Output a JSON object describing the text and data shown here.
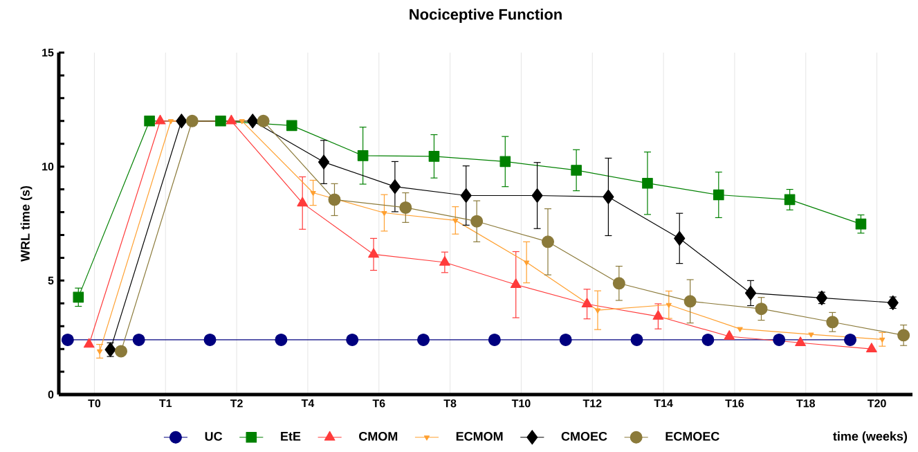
{
  "chart_data": {
    "type": "line",
    "title": "Nociceptive Function",
    "xlabel": "time (weeks)",
    "ylabel": "WRL time (s)",
    "categories": [
      "T0",
      "T1",
      "T2",
      "T4",
      "T6",
      "T8",
      "T10",
      "T12",
      "T14",
      "T16",
      "T18",
      "T20"
    ],
    "series": [
      {
        "name": "UC",
        "color": "#00007f",
        "marker": "circle",
        "values": [
          2.4,
          2.4,
          2.4,
          2.4,
          2.4,
          2.4,
          2.4,
          2.4,
          2.4,
          2.4,
          2.4,
          2.4
        ]
      },
      {
        "name": "EtE",
        "color": "#008000",
        "marker": "square",
        "values": [
          4.27,
          12,
          12,
          11.8,
          10.48,
          10.45,
          10.22,
          9.84,
          9.27,
          8.76,
          8.55,
          7.48
        ],
        "errors": [
          0.4,
          null,
          null,
          null,
          1.25,
          0.95,
          1.1,
          0.9,
          1.37,
          1.0,
          0.45,
          0.4
        ]
      },
      {
        "name": "CMOM",
        "color": "#ff3b3b",
        "marker": "triangle",
        "values": [
          2.2,
          12,
          12,
          8.4,
          6.15,
          5.8,
          4.82,
          3.97,
          3.43,
          2.55,
          2.27,
          2.0
        ],
        "errors": [
          null,
          null,
          null,
          1.15,
          0.7,
          0.45,
          1.45,
          0.65,
          0.55,
          null,
          null,
          null
        ]
      },
      {
        "name": "ECMOM",
        "color": "#ffa030",
        "marker": "triangle-down",
        "values": [
          1.9,
          12,
          12,
          8.85,
          7.97,
          7.64,
          5.8,
          3.7,
          3.94,
          2.88,
          2.64,
          2.42
        ],
        "errors": [
          0.3,
          null,
          null,
          0.55,
          0.8,
          0.6,
          0.9,
          0.85,
          0.6,
          null,
          null,
          0.3
        ]
      },
      {
        "name": "CMOEC",
        "color": "#000000",
        "marker": "diamond",
        "values": [
          1.97,
          12,
          12,
          10.2,
          9.12,
          8.73,
          8.73,
          8.67,
          6.85,
          4.45,
          4.24,
          4.03
        ],
        "errors": [
          0.3,
          null,
          null,
          0.95,
          1.1,
          1.3,
          1.45,
          1.7,
          1.1,
          0.55,
          0.25,
          0.25
        ]
      },
      {
        "name": "ECMOEC",
        "color": "#8b7a3a",
        "marker": "circle",
        "values": [
          1.9,
          12,
          12,
          8.55,
          8.2,
          7.6,
          6.7,
          4.88,
          4.09,
          3.76,
          3.18,
          2.6
        ],
        "errors": [
          null,
          null,
          null,
          0.7,
          0.65,
          0.9,
          1.45,
          0.75,
          0.95,
          0.5,
          0.42,
          0.45
        ]
      }
    ],
    "ylim": [
      0,
      15
    ],
    "yticks": [
      0,
      {
        "value": 1,
        "label": null
      },
      {
        "value": 2,
        "label": null
      },
      {
        "value": 3,
        "label": null
      },
      {
        "value": 4,
        "label": null
      },
      5,
      {
        "value": 6,
        "label": null
      },
      {
        "value": 7,
        "label": null
      },
      {
        "value": 8,
        "label": null
      },
      {
        "value": 9,
        "label": null
      },
      10,
      {
        "value": 11,
        "label": null
      },
      {
        "value": 12,
        "label": null
      },
      {
        "value": 13,
        "label": null
      },
      {
        "value": 14,
        "label": null
      },
      15
    ],
    "grid": "x",
    "legend": "bottom",
    "line_style": "solid"
  }
}
